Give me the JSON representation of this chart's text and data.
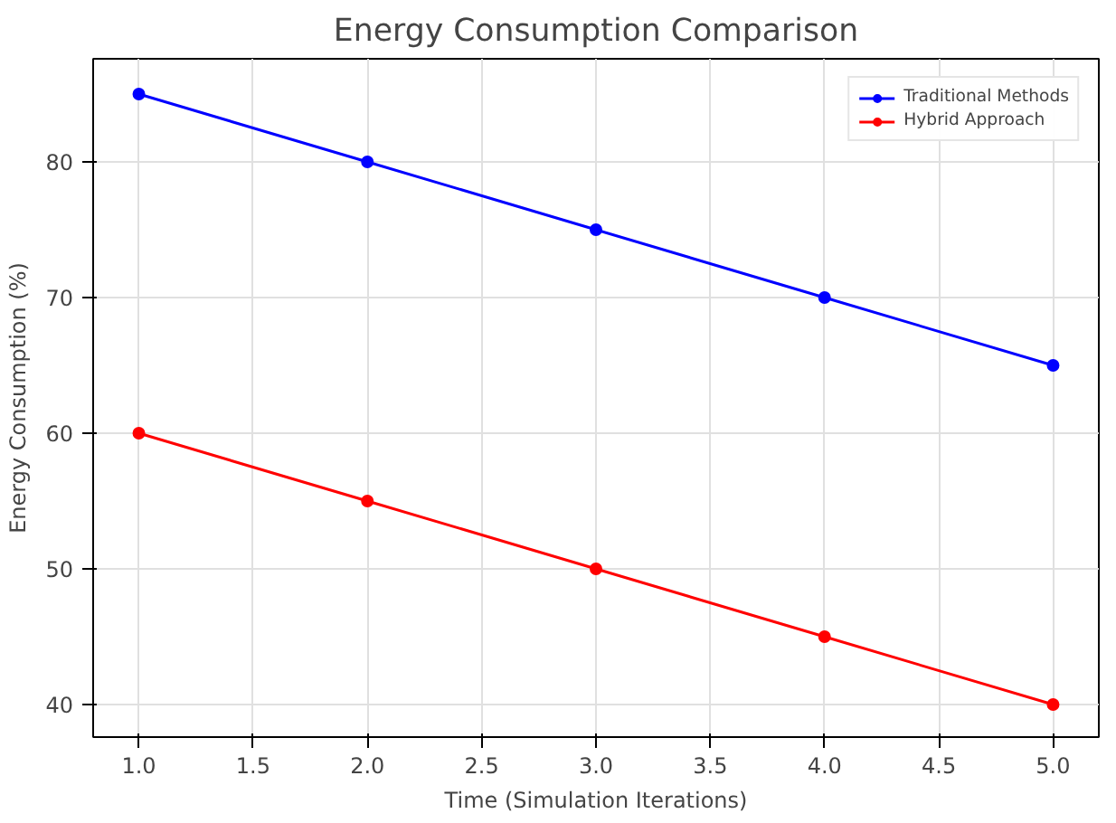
{
  "chart_data": {
    "type": "line",
    "title": "Energy Consumption Comparison",
    "xlabel": "Time (Simulation Iterations)",
    "ylabel": "Energy Consumption (%)",
    "x": [
      1,
      2,
      3,
      4,
      5
    ],
    "series": [
      {
        "name": "Traditional Methods",
        "color": "#0000ff",
        "values": [
          85,
          80,
          75,
          70,
          65
        ]
      },
      {
        "name": "Hybrid Approach",
        "color": "#ff0000",
        "values": [
          60,
          55,
          50,
          45,
          40
        ]
      }
    ],
    "xlim": [
      0.8,
      5.2
    ],
    "ylim": [
      37.6,
      87.6
    ],
    "xticks": [
      {
        "value": 1,
        "label": "1.0"
      },
      {
        "value": 1.5,
        "label": "1.5"
      },
      {
        "value": 2,
        "label": "2.0"
      },
      {
        "value": 2.5,
        "label": "2.5"
      },
      {
        "value": 3,
        "label": "3.0"
      },
      {
        "value": 3.5,
        "label": "3.5"
      },
      {
        "value": 4,
        "label": "4.0"
      },
      {
        "value": 4.5,
        "label": "4.5"
      },
      {
        "value": 5,
        "label": "5.0"
      }
    ],
    "yticks": [
      40,
      50,
      60,
      70,
      80
    ],
    "grid": true,
    "legend": "top right",
    "marker": "circle",
    "line_style": "solid"
  }
}
